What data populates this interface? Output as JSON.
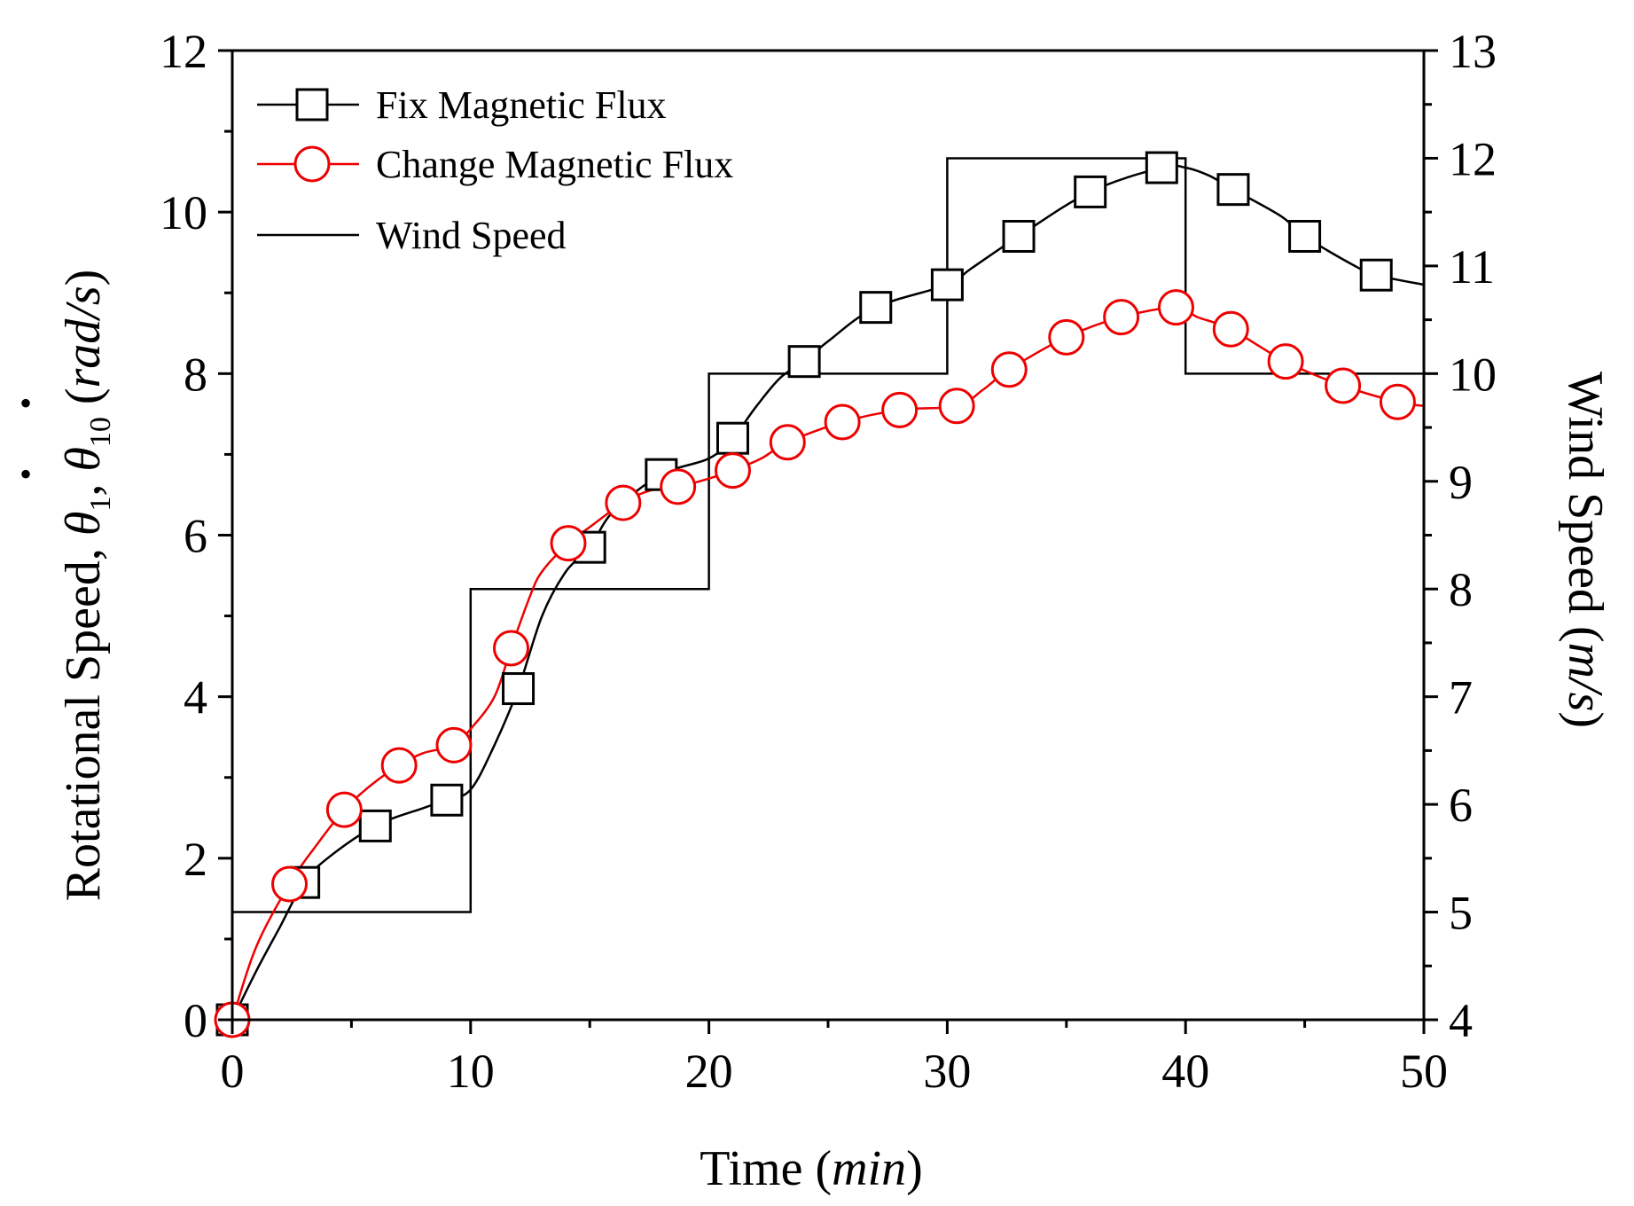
{
  "chart_data": {
    "type": "line",
    "x_axis": {
      "label_prefix": "Time (",
      "label_unit": "min",
      "label_suffix": ")",
      "range": [
        0,
        50
      ],
      "ticks": [
        0,
        10,
        20,
        30,
        40,
        50
      ]
    },
    "y_axis_left": {
      "label_prefix": "Rotational Speed, ",
      "symbol": "θ",
      "dot": "•",
      "sub1": "1",
      "sub2": "10",
      "sep": ", ",
      "unit_open": " (",
      "unit": "rad/s",
      "unit_close": ")",
      "range": [
        0,
        12
      ],
      "ticks": [
        0,
        2,
        4,
        6,
        8,
        10,
        12
      ]
    },
    "y_axis_right": {
      "label_prefix": "Wind Speed (",
      "label_unit": "m/s",
      "label_suffix": ")",
      "range": [
        4,
        13
      ],
      "ticks": [
        4,
        5,
        6,
        7,
        8,
        9,
        10,
        11,
        12,
        13
      ]
    },
    "legend": {
      "placement": "top-left",
      "entries": [
        "Fix Magnetic Flux",
        "Change Magnetic Flux",
        "Wind Speed"
      ]
    },
    "series": [
      {
        "name": "Fix Magnetic Flux",
        "color": "#000000",
        "marker": "square",
        "axis": "left",
        "line_points": [
          [
            0,
            0
          ],
          [
            1,
            0.6
          ],
          [
            2,
            1.15
          ],
          [
            3,
            1.7
          ],
          [
            4,
            2.0
          ],
          [
            6,
            2.4
          ],
          [
            8,
            2.62
          ],
          [
            9,
            2.72
          ],
          [
            10,
            2.85
          ],
          [
            11,
            3.4
          ],
          [
            12,
            4.1
          ],
          [
            13,
            5.0
          ],
          [
            14,
            5.55
          ],
          [
            15,
            5.85
          ],
          [
            16,
            6.3
          ],
          [
            18,
            6.75
          ],
          [
            20,
            6.95
          ],
          [
            21,
            7.2
          ],
          [
            22,
            7.6
          ],
          [
            23,
            7.95
          ],
          [
            24,
            8.15
          ],
          [
            25,
            8.4
          ],
          [
            27,
            8.82
          ],
          [
            30,
            9.1
          ],
          [
            31,
            9.3
          ],
          [
            33,
            9.7
          ],
          [
            36,
            10.25
          ],
          [
            39,
            10.55
          ],
          [
            40,
            10.55
          ],
          [
            41,
            10.45
          ],
          [
            42,
            10.28
          ],
          [
            44,
            9.95
          ],
          [
            45,
            9.7
          ],
          [
            47,
            9.35
          ],
          [
            48,
            9.22
          ],
          [
            50,
            9.1
          ]
        ],
        "markers": [
          [
            0,
            0
          ],
          [
            3,
            1.7
          ],
          [
            6,
            2.4
          ],
          [
            9,
            2.72
          ],
          [
            12,
            4.1
          ],
          [
            15,
            5.85
          ],
          [
            18,
            6.75
          ],
          [
            21,
            7.2
          ],
          [
            24,
            8.15
          ],
          [
            27,
            8.82
          ],
          [
            30,
            9.1
          ],
          [
            33,
            9.7
          ],
          [
            36,
            10.25
          ],
          [
            39,
            10.55
          ],
          [
            42,
            10.28
          ],
          [
            45,
            9.7
          ],
          [
            48,
            9.22
          ]
        ]
      },
      {
        "name": "Change Magnetic Flux",
        "color": "#ee0000",
        "marker": "circle",
        "axis": "left",
        "line_points": [
          [
            0,
            0
          ],
          [
            1,
            0.9
          ],
          [
            2.4,
            1.68
          ],
          [
            3.5,
            2.15
          ],
          [
            4.7,
            2.6
          ],
          [
            5.8,
            2.9
          ],
          [
            7,
            3.15
          ],
          [
            8,
            3.3
          ],
          [
            9.3,
            3.4
          ],
          [
            10,
            3.6
          ],
          [
            11,
            4.0
          ],
          [
            11.7,
            4.6
          ],
          [
            12.5,
            5.25
          ],
          [
            13,
            5.55
          ],
          [
            14.1,
            5.9
          ],
          [
            15,
            6.1
          ],
          [
            16.4,
            6.4
          ],
          [
            17.5,
            6.55
          ],
          [
            18.7,
            6.6
          ],
          [
            20,
            6.7
          ],
          [
            21,
            6.8
          ],
          [
            22.2,
            6.95
          ],
          [
            23.3,
            7.15
          ],
          [
            25.6,
            7.4
          ],
          [
            28,
            7.55
          ],
          [
            30.4,
            7.6
          ],
          [
            31.5,
            7.8
          ],
          [
            32.6,
            8.05
          ],
          [
            35,
            8.45
          ],
          [
            37.3,
            8.7
          ],
          [
            39.6,
            8.82
          ],
          [
            40.5,
            8.7
          ],
          [
            41.9,
            8.55
          ],
          [
            44.2,
            8.15
          ],
          [
            46.6,
            7.85
          ],
          [
            48.9,
            7.65
          ],
          [
            50,
            7.6
          ]
        ],
        "markers": [
          [
            0,
            0
          ],
          [
            2.4,
            1.68
          ],
          [
            4.7,
            2.6
          ],
          [
            7,
            3.15
          ],
          [
            9.3,
            3.4
          ],
          [
            11.7,
            4.6
          ],
          [
            14.1,
            5.9
          ],
          [
            16.4,
            6.4
          ],
          [
            18.7,
            6.6
          ],
          [
            21,
            6.8
          ],
          [
            23.3,
            7.15
          ],
          [
            25.6,
            7.4
          ],
          [
            28,
            7.55
          ],
          [
            30.4,
            7.6
          ],
          [
            32.6,
            8.05
          ],
          [
            35,
            8.45
          ],
          [
            37.3,
            8.7
          ],
          [
            39.6,
            8.82
          ],
          [
            41.9,
            8.55
          ],
          [
            44.2,
            8.15
          ],
          [
            46.6,
            7.85
          ],
          [
            48.9,
            7.65
          ]
        ]
      },
      {
        "name": "Wind Speed",
        "color": "#000000",
        "marker": "none",
        "axis": "right",
        "steps": [
          [
            0,
            10,
            5
          ],
          [
            10,
            20,
            8
          ],
          [
            20,
            30,
            10
          ],
          [
            30,
            40,
            12
          ],
          [
            40,
            50,
            10
          ]
        ]
      }
    ]
  }
}
